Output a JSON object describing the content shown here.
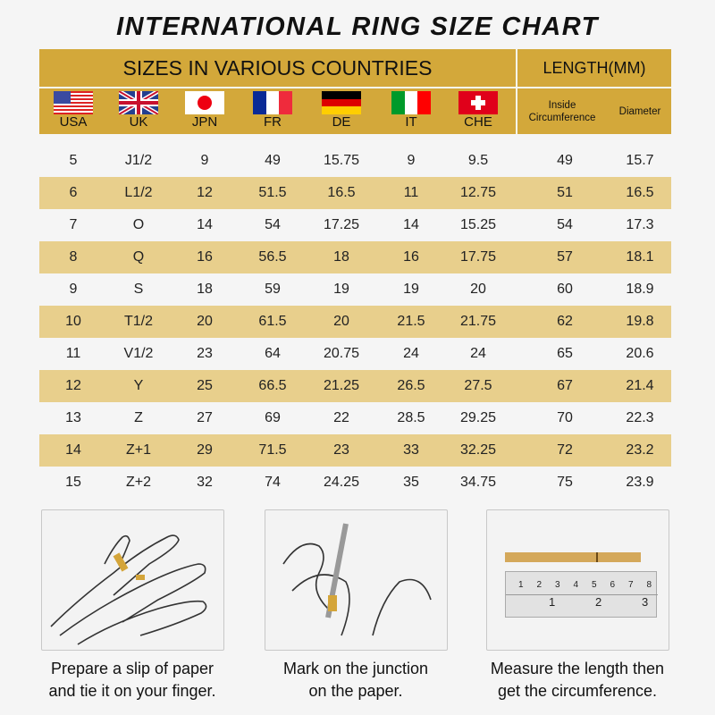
{
  "title": "INTERNATIONAL RING SIZE CHART",
  "header": {
    "countries": "SIZES IN VARIOUS COUNTRIES",
    "length": "LENGTH(MM)",
    "inside": "Inside Circumference",
    "diameter": "Diameter"
  },
  "flags": [
    {
      "label": "USA",
      "icon": "us-flag-icon"
    },
    {
      "label": "UK",
      "icon": "uk-flag-icon"
    },
    {
      "label": "JPN",
      "icon": "japan-flag-icon"
    },
    {
      "label": "FR",
      "icon": "france-flag-icon"
    },
    {
      "label": "DE",
      "icon": "germany-flag-icon"
    },
    {
      "label": "IT",
      "icon": "italy-flag-icon"
    },
    {
      "label": "CHE",
      "icon": "switzerland-flag-icon"
    }
  ],
  "colors": {
    "header": "#d3a83a",
    "alt_row": "#e8cf8c"
  },
  "chart_data": {
    "type": "table",
    "columns": [
      "USA",
      "UK",
      "JPN",
      "FR",
      "DE",
      "IT",
      "CHE",
      "Inside Circumference",
      "Diameter"
    ],
    "rows": [
      [
        "5",
        "J1/2",
        "9",
        "49",
        "15.75",
        "9",
        "9.5",
        "49",
        "15.7"
      ],
      [
        "6",
        "L1/2",
        "12",
        "51.5",
        "16.5",
        "11",
        "12.75",
        "51",
        "16.5"
      ],
      [
        "7",
        "O",
        "14",
        "54",
        "17.25",
        "14",
        "15.25",
        "54",
        "17.3"
      ],
      [
        "8",
        "Q",
        "16",
        "56.5",
        "18",
        "16",
        "17.75",
        "57",
        "18.1"
      ],
      [
        "9",
        "S",
        "18",
        "59",
        "19",
        "19",
        "20",
        "60",
        "18.9"
      ],
      [
        "10",
        "T1/2",
        "20",
        "61.5",
        "20",
        "21.5",
        "21.75",
        "62",
        "19.8"
      ],
      [
        "11",
        "V1/2",
        "23",
        "64",
        "20.75",
        "24",
        "24",
        "65",
        "20.6"
      ],
      [
        "12",
        "Y",
        "25",
        "66.5",
        "21.25",
        "26.5",
        "27.5",
        "67",
        "21.4"
      ],
      [
        "13",
        "Z",
        "27",
        "69",
        "22",
        "28.5",
        "29.25",
        "70",
        "22.3"
      ],
      [
        "14",
        "Z+1",
        "29",
        "71.5",
        "23",
        "33",
        "32.25",
        "72",
        "23.2"
      ],
      [
        "15",
        "Z+2",
        "32",
        "74",
        "24.25",
        "35",
        "34.75",
        "75",
        "23.9"
      ]
    ]
  },
  "steps": [
    {
      "line1": "Prepare a slip of paper",
      "line2": "and tie it on your finger."
    },
    {
      "line1": "Mark on the junction",
      "line2": "on the paper."
    },
    {
      "line1": "Measure the length then",
      "line2": "get the circumference."
    }
  ],
  "ruler": {
    "top": [
      "1",
      "2",
      "3",
      "4",
      "5",
      "6",
      "7",
      "8"
    ],
    "bottom": [
      "1",
      "2",
      "3"
    ]
  }
}
